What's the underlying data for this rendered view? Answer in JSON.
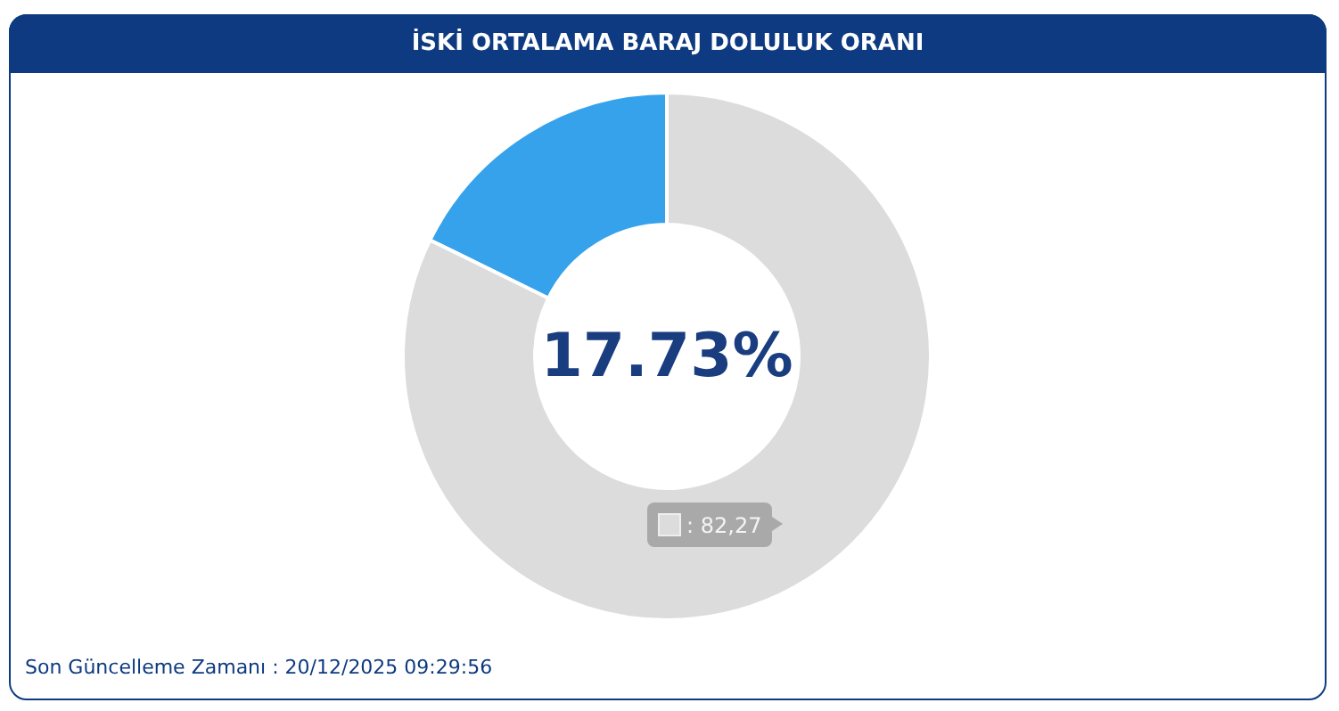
{
  "chart_data": {
    "type": "donut",
    "title": "İSKİ ORTALAMA BARAJ DOLULUK ORANI",
    "categories": [
      null,
      null
    ],
    "values": [
      17.73,
      82.27
    ],
    "colors": [
      "#36a2eb",
      "#dcdcdc"
    ],
    "value_labels": [
      "17.73%",
      ": 82,27"
    ],
    "annotations": [
      "Son Güncelleme Zamanı : 20/12/2025 09:29:56"
    ]
  }
}
